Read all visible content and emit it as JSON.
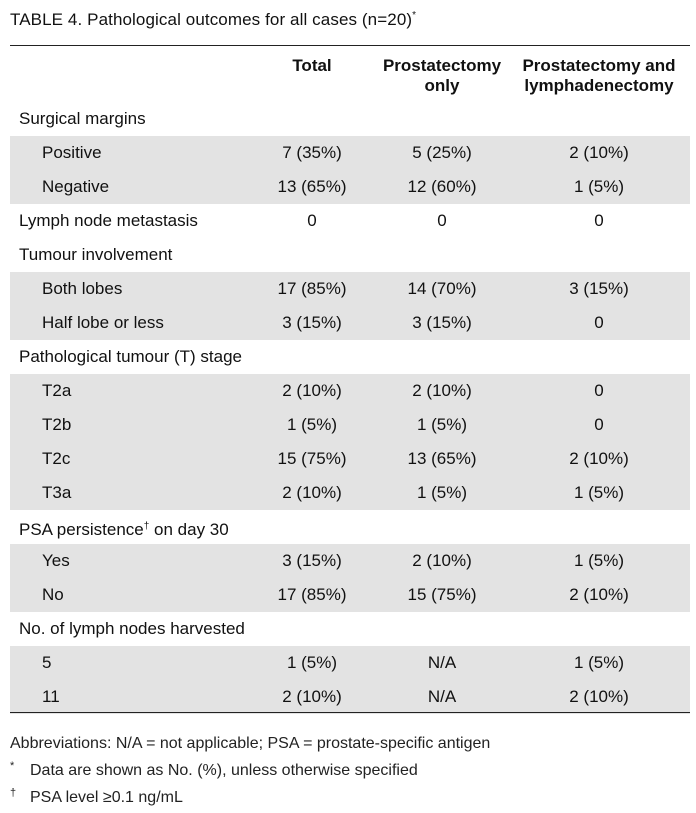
{
  "table": {
    "label": "TABLE 4.",
    "caption": "Pathological outcomes for all cases (n=20)",
    "caption_mark": "*",
    "headers": {
      "total": "Total",
      "prostatectomy_only": [
        "Prostatectomy",
        "only"
      ],
      "prostatectomy_lymph": [
        "Prostatectomy and",
        "lymphadenectomy"
      ]
    },
    "rows": [
      {
        "label": "Surgical margins",
        "total": "",
        "prost": "",
        "lymph": ""
      },
      {
        "label": "Positive",
        "total": "7 (35%)",
        "prost": "5 (25%)",
        "lymph": "2 (10%)"
      },
      {
        "label": "Negative",
        "total": "13 (65%)",
        "prost": "12 (60%)",
        "lymph": "1 (5%)"
      },
      {
        "label": "Lymph node metastasis",
        "total": "0",
        "prost": "0",
        "lymph": "0"
      },
      {
        "label": "Tumour involvement",
        "total": "",
        "prost": "",
        "lymph": ""
      },
      {
        "label": "Both lobes",
        "total": "17 (85%)",
        "prost": "14 (70%)",
        "lymph": "3 (15%)"
      },
      {
        "label": "Half lobe or less",
        "total": "3 (15%)",
        "prost": "3 (15%)",
        "lymph": "0"
      },
      {
        "label": "Pathological tumour (T) stage",
        "total": "",
        "prost": "",
        "lymph": ""
      },
      {
        "label": "T2a",
        "total": "2 (10%)",
        "prost": "2 (10%)",
        "lymph": "0"
      },
      {
        "label": "T2b",
        "total": "1 (5%)",
        "prost": "1 (5%)",
        "lymph": "0"
      },
      {
        "label": "T2c",
        "total": "15 (75%)",
        "prost": "13 (65%)",
        "lymph": "2 (10%)"
      },
      {
        "label": "T3a",
        "total": "2 (10%)",
        "prost": "1 (5%)",
        "lymph": "1 (5%)"
      },
      {
        "label": "PSA persistence",
        "label_mark": "†",
        "label_suffix": " on day 30",
        "total": "",
        "prost": "",
        "lymph": ""
      },
      {
        "label": "Yes",
        "total": "3 (15%)",
        "prost": "2 (10%)",
        "lymph": "1 (5%)"
      },
      {
        "label": "No",
        "total": "17 (85%)",
        "prost": "15 (75%)",
        "lymph": "2 (10%)"
      },
      {
        "label": "No. of lymph nodes harvested",
        "total": "",
        "prost": "",
        "lymph": ""
      },
      {
        "label": "5",
        "total": "1 (5%)",
        "prost": "N/A",
        "lymph": "1 (5%)"
      },
      {
        "label": "11",
        "total": "2 (10%)",
        "prost": "N/A",
        "lymph": "2 (10%)"
      }
    ]
  },
  "footnotes": {
    "abbreviations": "Abbreviations: N/A = not applicable; PSA = prostate-specific antigen",
    "items": [
      {
        "mark": "*",
        "text": "Data are shown as No. (%), unless otherwise specified"
      },
      {
        "mark": "†",
        "text": "PSA level ≥0.1 ng/mL"
      }
    ]
  }
}
